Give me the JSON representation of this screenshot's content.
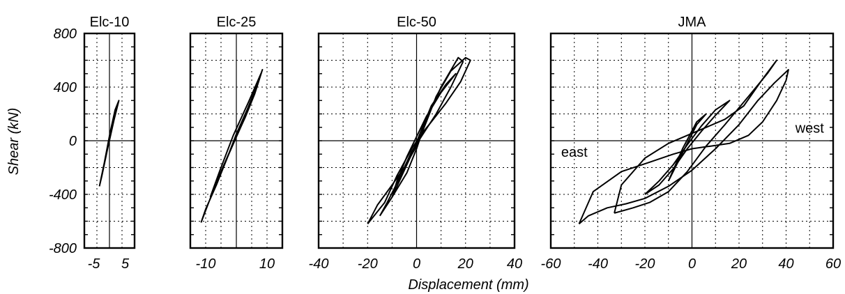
{
  "figure": {
    "ylabel": "Shear (kN)",
    "xlabel": "Displacement (mm)"
  },
  "chart_data": [
    {
      "type": "line",
      "title": "Elc-10",
      "ylabel": "Shear (kN)",
      "xlabel": "",
      "xlim": [
        -8,
        8
      ],
      "ylim": [
        -800,
        800
      ],
      "xticks": [
        -5,
        5
      ],
      "yticks": [
        -800,
        -400,
        0,
        400,
        800
      ],
      "grid": true,
      "series": [
        {
          "x": [
            -3.2,
            -1.6,
            0.2,
            1.8,
            3.0,
            1.4,
            -0.6,
            -2.4,
            -3.2
          ],
          "y": [
            -340,
            -160,
            60,
            230,
            300,
            150,
            -60,
            -260,
            -340
          ]
        }
      ]
    },
    {
      "type": "line",
      "title": "Elc-25",
      "ylabel": "",
      "xlabel": "",
      "xlim": [
        -15,
        15
      ],
      "ylim": [
        -800,
        800
      ],
      "xticks": [
        -10,
        10
      ],
      "yticks": [
        -800,
        -400,
        0,
        400,
        800
      ],
      "grid": true,
      "series": [
        {
          "x": [
            -11.5,
            -8.5,
            -5,
            -1,
            3,
            6,
            8.5,
            6.5,
            3.5,
            0,
            -3,
            -6.5,
            -10,
            -11.5
          ],
          "y": [
            -610,
            -430,
            -230,
            -20,
            180,
            350,
            530,
            400,
            230,
            50,
            -130,
            -330,
            -510,
            -610
          ]
        },
        {
          "x": [
            -8.5,
            -4,
            1,
            5,
            8,
            4,
            -1,
            -5.5,
            -8.5
          ],
          "y": [
            -420,
            -180,
            80,
            300,
            500,
            290,
            40,
            -230,
            -420
          ]
        }
      ]
    },
    {
      "type": "line",
      "title": "Elc-50",
      "ylabel": "",
      "xlabel": "",
      "xlim": [
        -40,
        40
      ],
      "ylim": [
        -800,
        800
      ],
      "xticks": [
        -40,
        -20,
        0,
        20,
        40
      ],
      "yticks": [
        -800,
        -400,
        0,
        400,
        800
      ],
      "grid": true,
      "series": [
        {
          "x": [
            -20,
            -16,
            -10,
            -5,
            0,
            4,
            8,
            14,
            20,
            22,
            18,
            12,
            6,
            2,
            -2,
            -8,
            -13,
            -20
          ],
          "y": [
            -620,
            -480,
            -330,
            -200,
            -40,
            140,
            330,
            520,
            620,
            600,
            440,
            280,
            140,
            50,
            -60,
            -260,
            -460,
            -620
          ]
        },
        {
          "x": [
            -15,
            -10,
            -4,
            0,
            4,
            10,
            17,
            19,
            14,
            8,
            3,
            -2,
            -7,
            -12,
            -15
          ],
          "y": [
            -560,
            -420,
            -240,
            -60,
            160,
            400,
            620,
            590,
            400,
            200,
            60,
            -80,
            -280,
            -460,
            -560
          ]
        },
        {
          "x": [
            -10,
            -6,
            -2,
            2,
            6,
            12,
            16,
            10,
            4,
            0,
            -4,
            -8,
            -10
          ],
          "y": [
            -420,
            -260,
            -100,
            80,
            260,
            420,
            500,
            360,
            180,
            30,
            -120,
            -300,
            -420
          ]
        }
      ]
    },
    {
      "type": "line",
      "title": "JMA",
      "ylabel": "",
      "xlabel": "",
      "xlim": [
        -60,
        60
      ],
      "ylim": [
        -800,
        800
      ],
      "xticks": [
        -60,
        -40,
        -20,
        0,
        20,
        40,
        60
      ],
      "yticks": [
        -800,
        -400,
        0,
        400,
        800
      ],
      "grid": true,
      "annotations": [
        "east",
        "west"
      ],
      "series": [
        {
          "x": [
            -48,
            -44,
            -36,
            -28,
            -20,
            -10,
            0,
            10,
            20,
            28,
            35,
            41,
            40,
            36,
            30,
            24,
            16,
            8,
            0,
            -8,
            -18,
            -30,
            -42,
            -48
          ],
          "y": [
            -620,
            -560,
            -500,
            -470,
            -430,
            -340,
            -220,
            -60,
            120,
            300,
            430,
            530,
            450,
            300,
            140,
            40,
            -20,
            -40,
            -60,
            -100,
            -160,
            -230,
            -380,
            -620
          ]
        },
        {
          "x": [
            -33,
            -25,
            -18,
            -10,
            -2,
            6,
            14,
            24,
            32,
            36,
            30,
            22,
            14,
            6,
            -2,
            -10,
            -20,
            -30,
            -33
          ],
          "y": [
            -540,
            -500,
            -460,
            -380,
            -230,
            -40,
            120,
            330,
            500,
            600,
            460,
            260,
            160,
            100,
            40,
            -20,
            -130,
            -330,
            -540
          ]
        },
        {
          "x": [
            -20,
            -14,
            -8,
            -2,
            4,
            10,
            16,
            10,
            4,
            -2,
            -8,
            -14,
            -20
          ],
          "y": [
            -400,
            -300,
            -180,
            -30,
            110,
            230,
            300,
            190,
            70,
            -60,
            -210,
            -330,
            -400
          ]
        },
        {
          "x": [
            -10,
            -7,
            -4,
            -1,
            2,
            6,
            2,
            -2,
            -6,
            -10
          ],
          "y": [
            -300,
            -180,
            -60,
            40,
            140,
            200,
            120,
            -20,
            -160,
            -300
          ]
        }
      ]
    }
  ]
}
